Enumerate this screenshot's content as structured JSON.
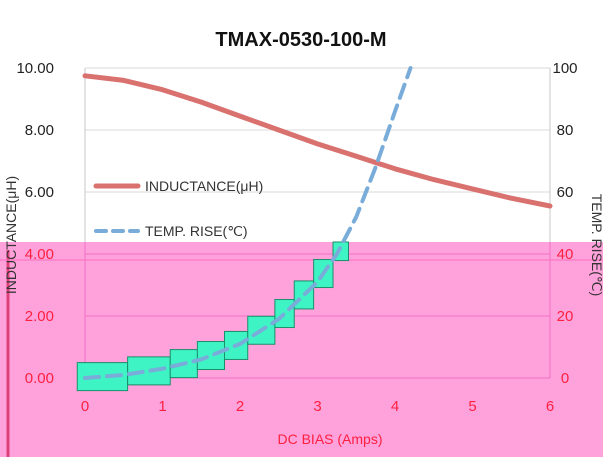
{
  "chart_data": {
    "type": "line",
    "title": "TMAX-0530-100-M",
    "xlabel": "DC BIAS  (Amps)",
    "ylabel_left": "INDUCTANCE(μH)",
    "ylabel_right": "TEMP. RISE(℃)",
    "xlim": [
      0,
      6
    ],
    "ylim_left": [
      0,
      10
    ],
    "ylim_right": [
      0,
      100
    ],
    "x_ticks": [
      "0",
      "1",
      "2",
      "3",
      "4",
      "5",
      "6"
    ],
    "y_left_ticks": [
      "0.00",
      "2.00",
      "4.00",
      "6.00",
      "8.00",
      "10.00"
    ],
    "y_right_ticks": [
      "0",
      "20",
      "40",
      "60",
      "80",
      "100"
    ],
    "grid": true,
    "legend": "left",
    "series": [
      {
        "name": "INDUCTANCE(μH)",
        "axis": "left",
        "style": "solid",
        "color": "#d9716f",
        "x": [
          0,
          0.5,
          1.0,
          1.5,
          2.0,
          2.5,
          3.0,
          3.5,
          4.0,
          4.5,
          5.0,
          5.5,
          6.0
        ],
        "y": [
          9.75,
          9.6,
          9.3,
          8.9,
          8.45,
          8.0,
          7.55,
          7.15,
          6.75,
          6.4,
          6.1,
          5.8,
          5.55
        ]
      },
      {
        "name": "TEMP. RISE(℃)",
        "axis": "right",
        "style": "dashed",
        "color": "#79acd9",
        "x": [
          0,
          0.5,
          1.0,
          1.5,
          2.0,
          2.5,
          3.0,
          3.25,
          3.5,
          3.75,
          4.0,
          4.2
        ],
        "y": [
          0,
          1,
          3,
          6,
          11,
          19,
          31,
          40,
          52,
          68,
          86,
          100
        ]
      }
    ]
  },
  "overlay": {
    "band_color": "#ff9ad8",
    "steps_color": "#3ef3c4"
  }
}
